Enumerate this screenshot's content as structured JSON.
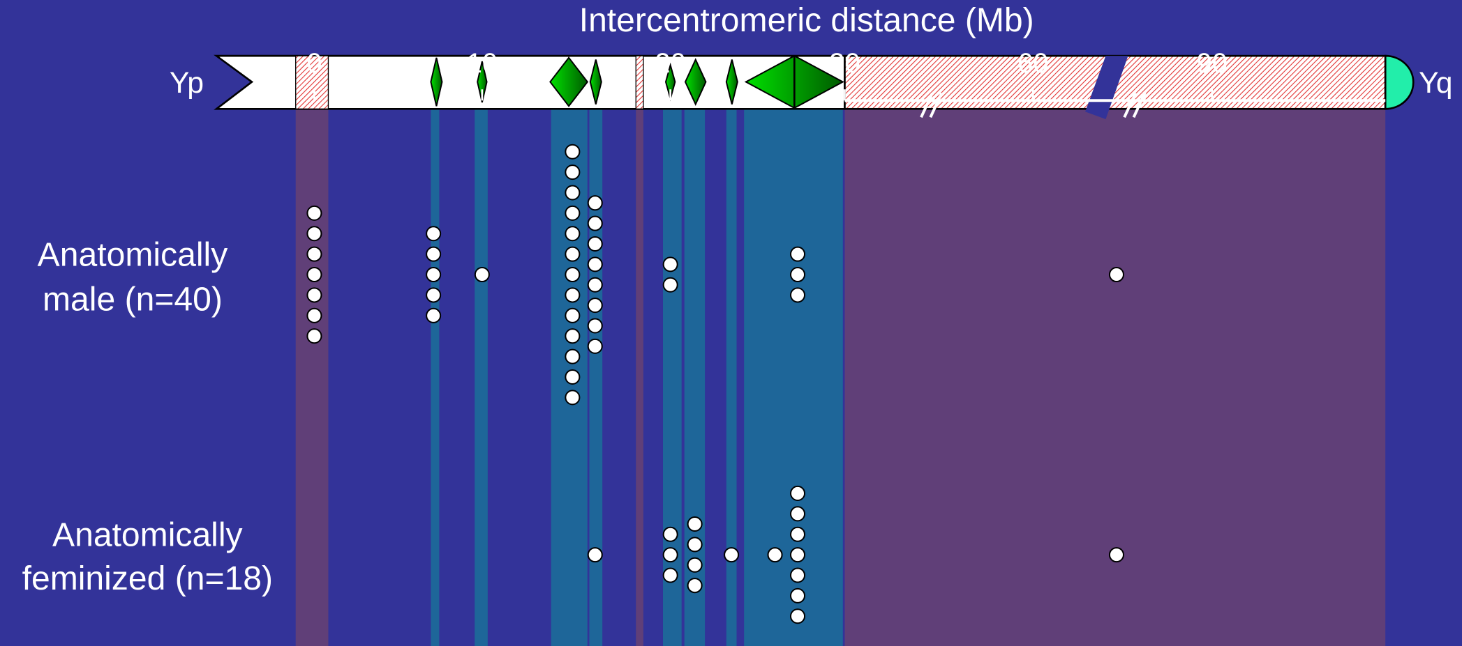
{
  "chart_data": {
    "type": "dot-columns",
    "title": "Intercentromeric distance (Mb)",
    "left_end_label": "Yp",
    "right_end_label": "Yq",
    "xticks": [
      0,
      10,
      20,
      30,
      60,
      90
    ],
    "groups": [
      {
        "label_lines": [
          "Anatomically",
          "male (n=40)"
        ],
        "x": [
          0,
          7.1,
          10,
          14.8,
          16,
          20,
          27.3,
          74
        ],
        "counts": [
          7,
          5,
          1,
          13,
          8,
          2,
          3,
          1
        ]
      },
      {
        "label_lines": [
          "Anatomically",
          "feminized (n=18)"
        ],
        "x": [
          16,
          20,
          21.4,
          23.5,
          26,
          27.3,
          74
        ],
        "counts": [
          1,
          3,
          4,
          1,
          1,
          7,
          1
        ]
      }
    ]
  }
}
